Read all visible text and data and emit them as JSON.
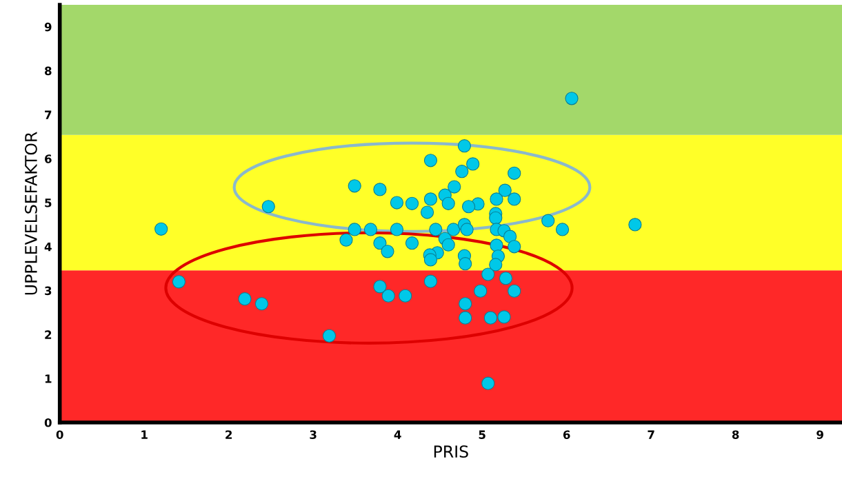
{
  "chart_data": {
    "type": "scatter",
    "xlabel": "PRIS",
    "ylabel": "UPPLEVELSEFAKTOR",
    "xlim": [
      0,
      9.26
    ],
    "ylim": [
      0,
      9.5
    ],
    "xticks": [
      0,
      1,
      2,
      3,
      4,
      5,
      6,
      7,
      8,
      9
    ],
    "yticks": [
      0,
      1,
      2,
      3,
      4,
      5,
      6,
      7,
      8,
      9
    ],
    "grid": false,
    "legend": false,
    "marker": "circle",
    "bands": [
      {
        "axis": "y",
        "from": 0,
        "to": 3.46,
        "color": "#ff2828"
      },
      {
        "axis": "y",
        "from": 3.46,
        "to": 6.54,
        "color": "#ffff28"
      },
      {
        "axis": "y",
        "from": 6.54,
        "to": 9.5,
        "color": "#a3d86a"
      }
    ],
    "series": [
      {
        "color": "#00c8e8",
        "x": [
          6.06,
          4.79,
          4.39,
          4.89,
          4.76,
          5.38,
          3.49,
          3.79,
          4.67,
          5.27,
          4.56,
          4.39,
          2.47,
          3.99,
          4.17,
          4.6,
          5.17,
          5.38,
          4.95,
          4.84,
          4.35,
          5.16,
          5.16,
          5.78,
          6.81,
          5.95,
          1.2,
          3.49,
          3.68,
          3.99,
          4.45,
          4.66,
          4.79,
          4.82,
          5.17,
          5.26,
          5.33,
          3.39,
          3.79,
          4.17,
          4.56,
          4.6,
          5.17,
          5.38,
          3.88,
          4.47,
          4.38,
          4.79,
          5.19,
          4.39,
          4.8,
          5.16,
          5.07,
          4.39,
          5.28,
          1.41,
          3.79,
          4.98,
          5.38,
          3.89,
          4.09,
          2.19,
          2.39,
          4.8,
          4.8,
          5.1,
          5.26,
          3.19,
          5.07
        ],
        "values": [
          7.37,
          6.29,
          5.96,
          5.88,
          5.71,
          5.67,
          5.38,
          5.3,
          5.36,
          5.28,
          5.17,
          5.08,
          4.91,
          5.0,
          4.98,
          4.98,
          5.08,
          5.08,
          4.97,
          4.91,
          4.78,
          4.75,
          4.65,
          4.59,
          4.5,
          4.39,
          4.4,
          4.39,
          4.39,
          4.39,
          4.39,
          4.39,
          4.5,
          4.39,
          4.39,
          4.36,
          4.23,
          4.15,
          4.08,
          4.08,
          4.18,
          4.04,
          4.03,
          4.0,
          3.89,
          3.86,
          3.81,
          3.79,
          3.78,
          3.7,
          3.61,
          3.59,
          3.37,
          3.21,
          3.28,
          3.2,
          3.09,
          2.99,
          2.99,
          2.88,
          2.88,
          2.81,
          2.7,
          2.7,
          2.38,
          2.38,
          2.4,
          1.97,
          0.89
        ]
      }
    ]
  }
}
